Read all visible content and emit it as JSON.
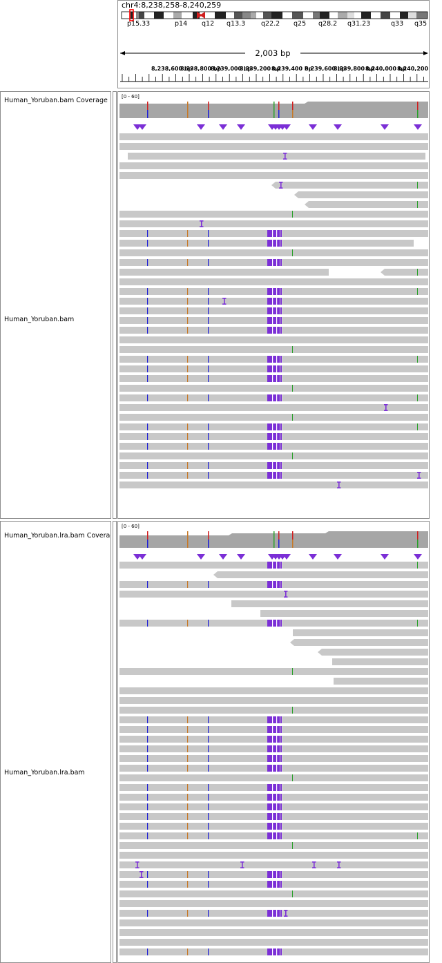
{
  "locus": "chr4:8,238,258-8,240,259",
  "bands": [
    "p15.33",
    "p14",
    "q12",
    "q13.3",
    "q22.2",
    "q25",
    "q28.2",
    "q31.23",
    "q33",
    "q35"
  ],
  "span_label": "2,003 bp",
  "ruler_ticks": [
    "8,238,600 bp",
    "8,238,800 bp",
    "8,239,000 bp",
    "8,239,200 bp",
    "8,239,400 bp",
    "8,239,600 bp",
    "8,239,800 bp",
    "8,240,000 bp",
    "8,240,200 bp"
  ],
  "tracks": [
    {
      "coverage_name": "Human_Yoruban.bam Coverage",
      "coverage_range": "[0 - 60]",
      "alignment_name": "Human_Yoruban.bam"
    },
    {
      "coverage_name": "Human_Yoruban.lra.bam Coverage",
      "coverage_range": "[0 - 60]",
      "alignment_name": "Human_Yoruban.lra.bam"
    }
  ],
  "colors": {
    "read": "#c8c8c8",
    "coverage": "#a6a6a6",
    "insertion": "#7b2fd6",
    "mismatch_a": "#1f1fd6",
    "mismatch_g": "#c77a2a",
    "mismatch_t": "#d11f1f",
    "mismatch_c": "#2aa12a",
    "panel_border": "#8c8c8c"
  }
}
